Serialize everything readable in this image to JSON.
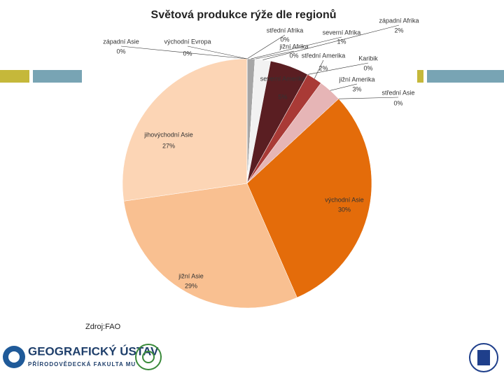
{
  "chart_data": {
    "type": "pie",
    "title": "Světová produkce rýže dle regionů",
    "categories": [
      "střední Afrika",
      "severní Afrika",
      "jižní Afrika",
      "západní Afrika",
      "severní Amerika",
      "Karibik",
      "střední Amerika",
      "jižní Amerika",
      "střední Asie",
      "východní Asie",
      "jižní Asie",
      "jihovýchodní Asie",
      "západní Asie",
      "východní Evropa"
    ],
    "values": [
      0,
      1,
      0,
      2,
      5,
      0,
      2,
      3,
      0,
      30,
      29,
      27,
      0,
      0
    ],
    "value_labels": [
      "0%",
      "1%",
      "0%",
      "2%",
      "5%",
      "0%",
      "2%",
      "3%",
      "0%",
      "30%",
      "29%",
      "27%",
      "0%",
      "0%"
    ],
    "colors": [
      "#7f7f7f",
      "#a6a6a6",
      "#d9d9d9",
      "#f2f2f2",
      "#5a1e22",
      "#8b2b2b",
      "#a93a36",
      "#e6b5b6",
      "#c0504d",
      "#e46c0a",
      "#f9c091",
      "#fcd5b5",
      "#76923c",
      "#4f6228"
    ]
  },
  "slide": {
    "source": "Zdroj:FAO",
    "logo_title": "GEOGRAFICKÝ ÚSTAV",
    "logo_subtitle": "PŘÍRODOVĚDECKÁ FAKULTA MU"
  }
}
